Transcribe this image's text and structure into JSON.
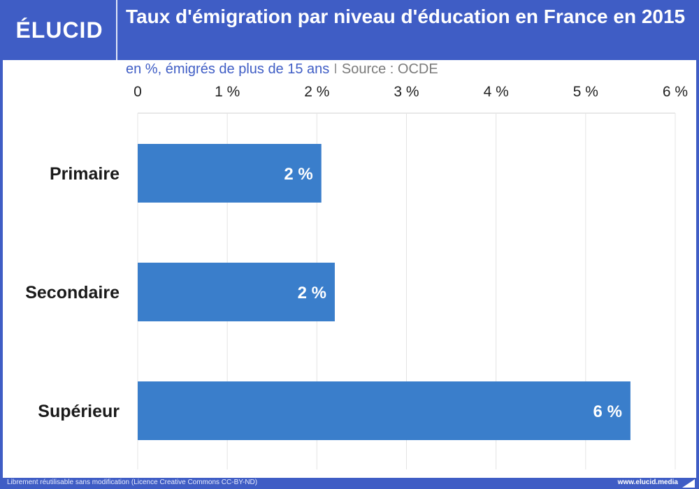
{
  "header": {
    "logo": "ÉLUCID",
    "title": "Taux d'émigration par niveau d'éducation en France en 2015"
  },
  "subtitle": {
    "unit": "en %, émigrés de plus de 15 ans",
    "separator": "I",
    "source": "Source : OCDE"
  },
  "chart_data": {
    "type": "bar",
    "orientation": "horizontal",
    "title": "Taux d'émigration par niveau d'éducation en France en 2015",
    "subtitle": "en %, émigrés de plus de 15 ans",
    "categories": [
      "Primaire",
      "Secondaire",
      "Supérieur"
    ],
    "values": [
      2.05,
      2.2,
      5.5
    ],
    "data_labels": [
      "2 %",
      "2 %",
      "6 %"
    ],
    "xlim": [
      0,
      6
    ],
    "x_ticks": [
      0,
      1,
      2,
      3,
      4,
      5,
      6
    ],
    "x_tick_labels": [
      "0",
      "1 %",
      "2 %",
      "3 %",
      "4 %",
      "5 %",
      "6 %"
    ],
    "xaxis_position": "top",
    "grid": true,
    "bar_color": "#3a7ecb",
    "grid_color": "#e4e4e4",
    "label_color": "#ffffff"
  },
  "footer": {
    "license": "Librement réutilisable sans modification (Licence Creative Commons CC-BY-ND)",
    "site": "www.elucid.media",
    "icon": "flag-icon"
  },
  "colors": {
    "brand": "#3f5dc5",
    "bar": "#3a7ecb"
  }
}
